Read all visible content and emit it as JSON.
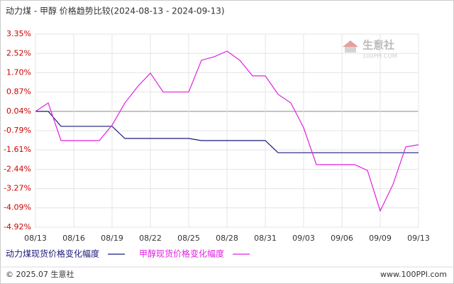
{
  "chart_data": {
    "type": "line",
    "title": "动力煤 - 甲醇 价格趋势比较(2024-08-13 - 2024-09-13)",
    "categories": [
      "08/13",
      null,
      null,
      "08/16",
      null,
      null,
      "08/19",
      null,
      null,
      "08/22",
      null,
      null,
      "08/25",
      null,
      null,
      "08/28",
      null,
      null,
      "08/31",
      null,
      null,
      "09/03",
      null,
      null,
      "09/06",
      null,
      null,
      "09/09",
      null,
      null,
      "09/13"
    ],
    "series": [
      {
        "name": "动力煤现货价格变化幅度",
        "color": "#1a1a7a",
        "values": [
          0.04,
          0.04,
          -0.6,
          -0.6,
          -0.6,
          -0.6,
          -0.6,
          -1.12,
          -1.12,
          -1.12,
          -1.12,
          -1.12,
          -1.12,
          -1.21,
          -1.21,
          -1.21,
          -1.21,
          -1.21,
          -1.21,
          -1.73,
          -1.73,
          -1.73,
          -1.73,
          -1.73,
          -1.73,
          -1.73,
          -1.73,
          -1.73,
          -1.73,
          -1.73,
          -1.73
        ]
      },
      {
        "name": "甲醇现货价格变化幅度",
        "color": "#e020e0",
        "values": [
          0.04,
          0.4,
          -1.21,
          -1.21,
          -1.21,
          -1.21,
          -0.55,
          0.4,
          1.1,
          1.68,
          0.87,
          0.87,
          0.87,
          2.23,
          2.38,
          2.62,
          2.23,
          1.56,
          1.56,
          0.77,
          0.4,
          -0.66,
          -2.24,
          -2.24,
          -2.24,
          -2.24,
          -2.49,
          -4.22,
          -3.09,
          -1.48,
          -1.39
        ]
      }
    ],
    "ylim": [
      -4.92,
      3.35
    ],
    "yticks": [
      {
        "value": 3.35,
        "label": "3.35%"
      },
      {
        "value": 2.52,
        "label": "2.52%"
      },
      {
        "value": 1.7,
        "label": "1.70%"
      },
      {
        "value": 0.87,
        "label": "0.87%"
      },
      {
        "value": 0.04,
        "label": "0.04%"
      },
      {
        "value": -0.79,
        "label": "-0.79%"
      },
      {
        "value": -1.61,
        "label": "-1.61%"
      },
      {
        "value": -2.44,
        "label": "-2.44%"
      },
      {
        "value": -3.27,
        "label": "-3.27%"
      },
      {
        "value": -4.09,
        "label": "-4.09%"
      },
      {
        "value": -4.92,
        "label": "-4.92%"
      }
    ],
    "grid": true,
    "watermark": "生意社",
    "watermark_sub": "100PPI.COM",
    "footer_left": "© 2025.07 生意社",
    "footer_right": "www.100PPI.com"
  }
}
